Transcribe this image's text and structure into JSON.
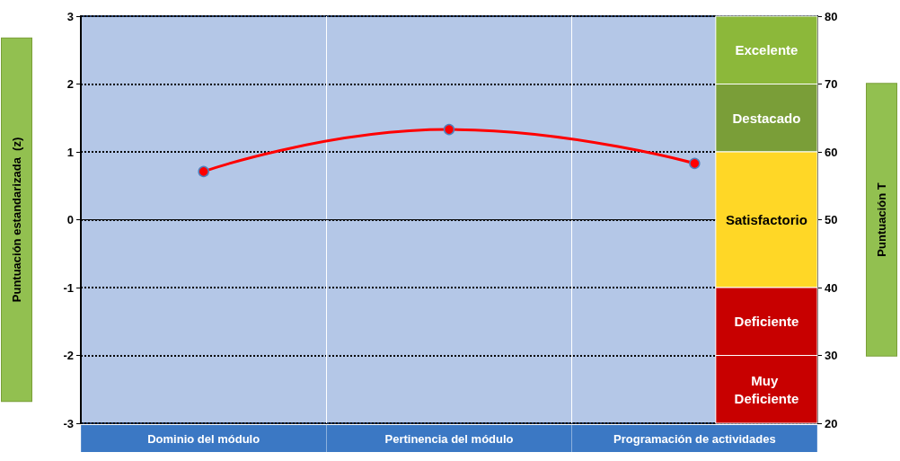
{
  "chart_data": {
    "type": "line",
    "xlabel": null,
    "ylabel": "Puntuación estandarizada  (z)",
    "y2label": "Puntuación T",
    "categories": [
      "Dominio del módulo",
      "Pertinencia del módulo",
      "Programación de actividades"
    ],
    "series": [
      {
        "color": "#ff0000",
        "values": [
          0.71,
          1.33,
          0.83
        ]
      }
    ],
    "ylim": [
      -3,
      3
    ],
    "yticks": [
      -3,
      -2,
      -1,
      0,
      1,
      2,
      3
    ],
    "y2lim": [
      20,
      80
    ],
    "y2ticks": [
      20,
      30,
      40,
      50,
      60,
      70,
      80
    ],
    "bands": [
      {
        "axis": "y",
        "from": 2,
        "to": 3,
        "label": "Excelente",
        "color": "#8cb83a"
      },
      {
        "axis": "y",
        "from": 1,
        "to": 2,
        "label": "Destacado",
        "color": "#7a9e38"
      },
      {
        "axis": "y",
        "from": -1,
        "to": 1,
        "label": "Satisfactorio",
        "color": "#ffd726"
      },
      {
        "axis": "y",
        "from": -2,
        "to": -1,
        "label": "Deficiente",
        "color": "#c80000"
      },
      {
        "axis": "y",
        "from": -3,
        "to": -2,
        "label": "Muy Deficiente",
        "color": "#c80000"
      }
    ],
    "grid": true,
    "marker": "circle",
    "line_style": "solid"
  }
}
